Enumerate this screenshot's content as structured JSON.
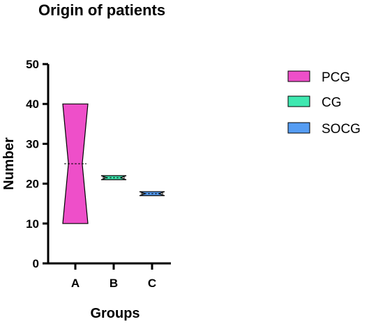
{
  "chart_data": {
    "type": "box",
    "title": "Origin of patients",
    "xlabel": "Groups",
    "ylabel": "Number",
    "ylim": [
      0,
      50
    ],
    "yticks": [
      0,
      10,
      20,
      30,
      40,
      50
    ],
    "categories": [
      "A",
      "B",
      "C"
    ],
    "legend_position": "right",
    "grid": false,
    "series": [
      {
        "name": "PCG",
        "category": "A",
        "min": 10,
        "max": 40,
        "median": 25,
        "waist": 0.55,
        "color": "#ee4fc9"
      },
      {
        "name": "CG",
        "category": "B",
        "min": 21,
        "max": 22,
        "median": 21.5,
        "waist": 0.55,
        "color": "#3ee8b0"
      },
      {
        "name": "SOCG",
        "category": "C",
        "min": 17,
        "max": 18,
        "median": 17.5,
        "waist": 0.55,
        "color": "#569df3"
      }
    ]
  }
}
